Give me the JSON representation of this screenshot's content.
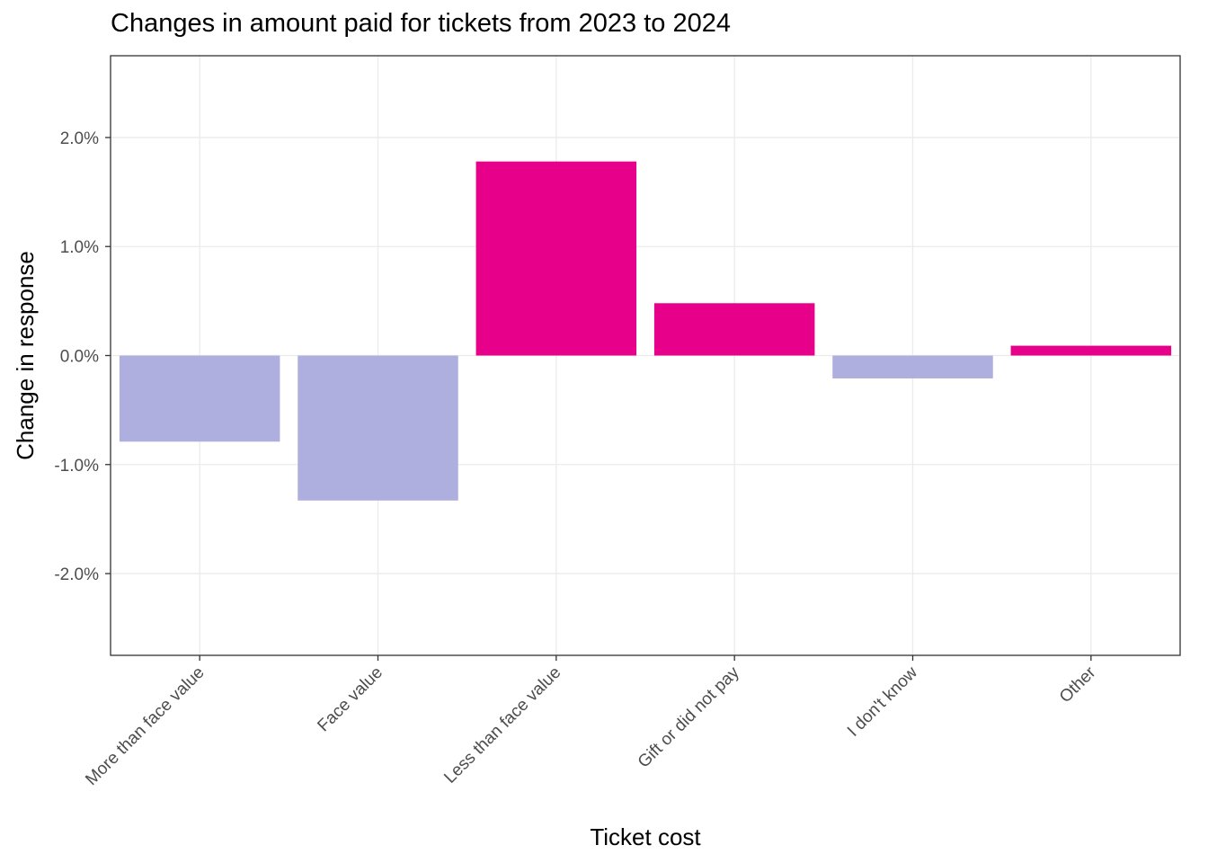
{
  "chart_data": {
    "type": "bar",
    "title": "Changes in amount paid for tickets from 2023 to 2024",
    "xlabel": "Ticket cost",
    "ylabel": "Change in response",
    "categories": [
      "More than face value",
      "Face value",
      "Less than face value",
      "Gift or did not pay",
      "I don't know",
      "Other"
    ],
    "values": [
      -0.79,
      -1.33,
      1.78,
      0.48,
      -0.21,
      0.09
    ],
    "value_unit": "%",
    "ylim": [
      -2.75,
      2.75
    ],
    "yticks": [
      -2.0,
      -1.0,
      0.0,
      1.0,
      2.0
    ],
    "ytick_labels": [
      "-2.0%",
      "-1.0%",
      "0.0%",
      "1.0%",
      "2.0%"
    ],
    "grid": true,
    "legend": "none",
    "colors": {
      "positive": "#E7008A",
      "negative": "#AFAFDF",
      "grid": "#EBEBEB",
      "panel_border": "#333333"
    }
  }
}
